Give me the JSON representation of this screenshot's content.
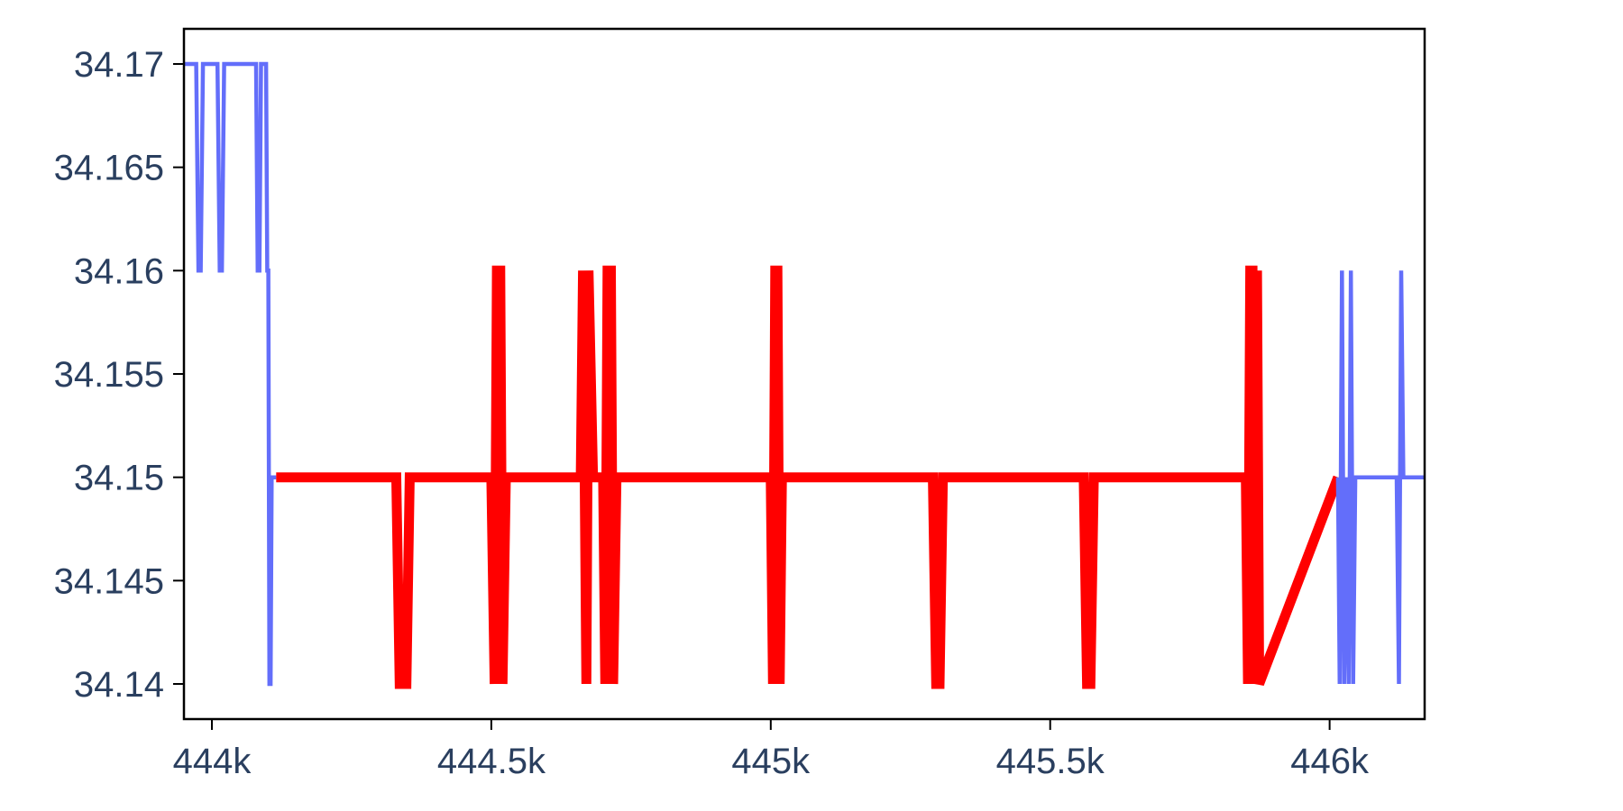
{
  "chart_data": {
    "type": "line",
    "title": "",
    "xlabel": "",
    "ylabel": "",
    "xlim": [
      443950,
      446170
    ],
    "ylim": [
      34.1383,
      34.1717
    ],
    "x_ticks": [
      {
        "value": 444000,
        "label": "444k"
      },
      {
        "value": 444500,
        "label": "444.5k"
      },
      {
        "value": 445000,
        "label": "445k"
      },
      {
        "value": 445500,
        "label": "445.5k"
      },
      {
        "value": 446000,
        "label": "446k"
      }
    ],
    "y_ticks": [
      {
        "value": 34.14,
        "label": "34.14"
      },
      {
        "value": 34.145,
        "label": "34.145"
      },
      {
        "value": 34.15,
        "label": "34.15"
      },
      {
        "value": 34.155,
        "label": "34.155"
      },
      {
        "value": 34.16,
        "label": "34.16"
      },
      {
        "value": 34.165,
        "label": "34.165"
      },
      {
        "value": 34.17,
        "label": "34.17"
      }
    ],
    "grid": false,
    "legend": "none",
    "series": [
      {
        "color": "#636efa",
        "line_width": "thin",
        "x": [
          443950,
          443970,
          443972,
          443976,
          443980,
          443984,
          444008,
          444010,
          444014,
          444018,
          444022,
          444076,
          444079,
          444082,
          444085,
          444088,
          444091,
          444094,
          444097,
          444099,
          444101,
          444103,
          444105,
          444107,
          444109,
          444111,
          444115
        ],
        "y": [
          34.17,
          34.17,
          34.17,
          34.16,
          34.16,
          34.17,
          34.17,
          34.17,
          34.16,
          34.16,
          34.17,
          34.17,
          34.17,
          34.16,
          34.16,
          34.17,
          34.17,
          34.17,
          34.17,
          34.16,
          34.16,
          34.14,
          34.14,
          34.15,
          34.15,
          34.15,
          34.15
        ]
      },
      {
        "color": "#ff0000",
        "line_width": "thick",
        "x": [
          444115,
          444330,
          444336,
          444342,
          444348,
          444354,
          444500,
          444506,
          444510,
          444516,
          444520,
          444526,
          444660,
          444664,
          444670,
          444674,
          444682,
          444700,
          444704,
          444708,
          444714,
          444718,
          444724,
          445000,
          445004,
          445008,
          445012,
          445016,
          445020,
          445290,
          445296,
          445302,
          445308,
          445560,
          445566,
          445572,
          445578,
          445850,
          445854,
          445858,
          445862,
          445866,
          445870,
          445874,
          446015
        ],
        "y": [
          34.15,
          34.15,
          34.14,
          34.14,
          34.14,
          34.15,
          34.15,
          34.14,
          34.16,
          34.16,
          34.14,
          34.15,
          34.15,
          34.16,
          34.14,
          34.16,
          34.15,
          34.15,
          34.14,
          34.16,
          34.16,
          34.14,
          34.15,
          34.15,
          34.14,
          34.16,
          34.16,
          34.14,
          34.15,
          34.15,
          34.14,
          34.14,
          34.15,
          34.15,
          34.14,
          34.14,
          34.15,
          34.15,
          34.14,
          34.16,
          34.16,
          34.14,
          34.16,
          34.14,
          34.15
        ]
      },
      {
        "color": "#636efa",
        "line_width": "thin",
        "x": [
          446015,
          446018,
          446022,
          446026,
          446030,
          446034,
          446038,
          446042,
          446046,
          446050,
          446120,
          446124,
          446128,
          446132,
          446136,
          446170
        ],
        "y": [
          34.15,
          34.14,
          34.16,
          34.14,
          34.15,
          34.14,
          34.16,
          34.14,
          34.15,
          34.15,
          34.15,
          34.14,
          34.16,
          34.15,
          34.15,
          34.15
        ]
      }
    ]
  }
}
